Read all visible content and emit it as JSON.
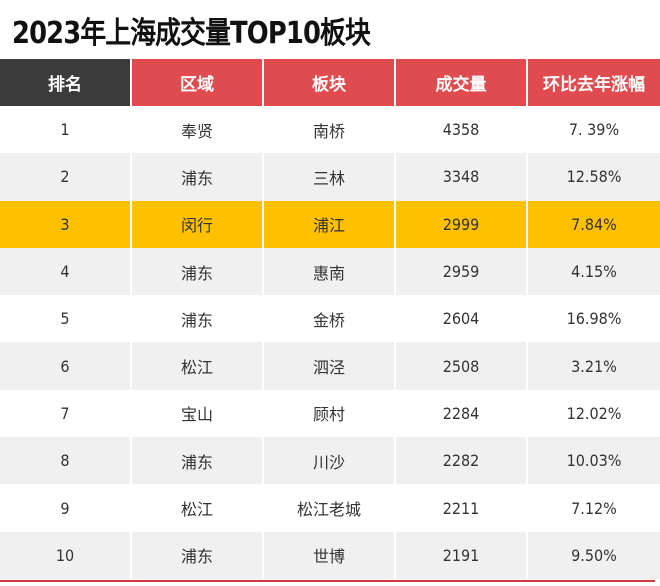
{
  "title": "2023年上海成交量TOP10板块",
  "header": {
    "rank": "排名",
    "district": "区域",
    "block": "板块",
    "volume": "成交量",
    "change": "环比去年涨幅"
  },
  "colors": {
    "header_rank_bg": "#3b3b3b",
    "header_bg": "#e04b4f",
    "highlight_bg": "#ffc000",
    "stripe_bg": "#f0f0f0",
    "bottom_line": "#d03a3e"
  },
  "highlight_rank": 3,
  "rows": [
    {
      "rank": "1",
      "district": "奉贤",
      "block": "南桥",
      "volume": "4358",
      "change": "7. 39%"
    },
    {
      "rank": "2",
      "district": "浦东",
      "block": "三林",
      "volume": "3348",
      "change": "12.58%"
    },
    {
      "rank": "3",
      "district": "闵行",
      "block": "浦江",
      "volume": "2999",
      "change": "7.84%"
    },
    {
      "rank": "4",
      "district": "浦东",
      "block": "惠南",
      "volume": "2959",
      "change": "4.15%"
    },
    {
      "rank": "5",
      "district": "浦东",
      "block": "金桥",
      "volume": "2604",
      "change": "16.98%"
    },
    {
      "rank": "6",
      "district": "松江",
      "block": "泗泾",
      "volume": "2508",
      "change": "3.21%"
    },
    {
      "rank": "7",
      "district": "宝山",
      "block": "顾村",
      "volume": "2284",
      "change": "12.02%"
    },
    {
      "rank": "8",
      "district": "浦东",
      "block": "川沙",
      "volume": "2282",
      "change": "10.03%"
    },
    {
      "rank": "9",
      "district": "松江",
      "block": "松江老城",
      "volume": "2211",
      "change": "7.12%"
    },
    {
      "rank": "10",
      "district": "浦东",
      "block": "世博",
      "volume": "2191",
      "change": "9.50%"
    }
  ]
}
